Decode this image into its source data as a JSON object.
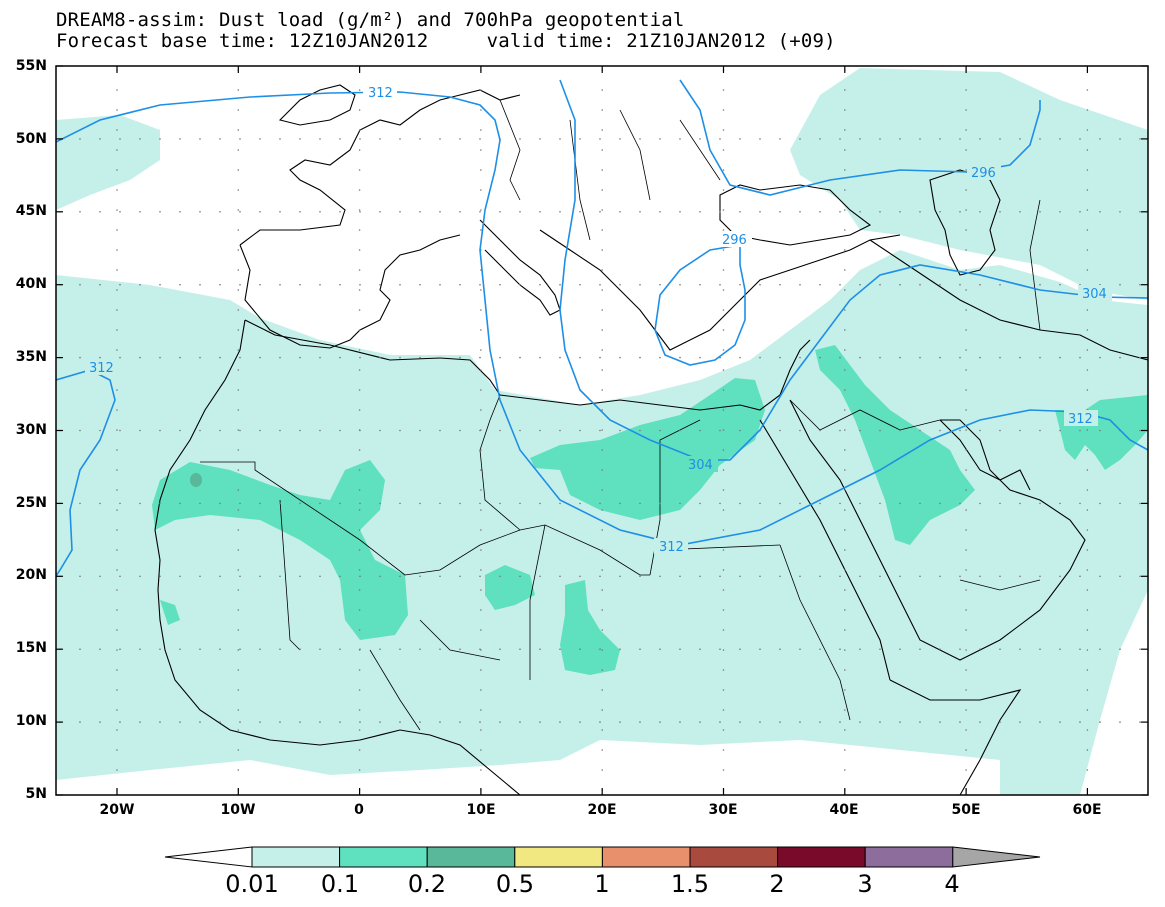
{
  "header": {
    "line1": "DREAM8-assim: Dust load (g/m²) and 700hPa geopotential",
    "line2": "Forecast base time: 12Z10JAN2012     valid time: 21Z10JAN2012 (+09)"
  },
  "axes": {
    "lat_labels": [
      "55N",
      "50N",
      "45N",
      "40N",
      "35N",
      "30N",
      "25N",
      "20N",
      "15N",
      "10N",
      "5N"
    ],
    "lon_labels": [
      "20W",
      "10W",
      "0",
      "10E",
      "20E",
      "30E",
      "40E",
      "50E",
      "60E"
    ]
  },
  "contour_labels": [
    {
      "id": "c312-north",
      "text": "312"
    },
    {
      "id": "c312-west",
      "text": "312"
    },
    {
      "id": "c312-south",
      "text": "312"
    },
    {
      "id": "c312-east",
      "text": "312"
    },
    {
      "id": "c304-south",
      "text": "304"
    },
    {
      "id": "c304-east",
      "text": "304"
    },
    {
      "id": "c296-east",
      "text": "296"
    },
    {
      "id": "c296-greece",
      "text": "296"
    }
  ],
  "colorbar": {
    "labels": [
      "0.01",
      "0.1",
      "0.2",
      "0.5",
      "1",
      "1.5",
      "2",
      "3",
      "4"
    ],
    "colors": [
      "#ffffff",
      "#c5f0ea",
      "#5fe0bf",
      "#58b899",
      "#f1e882",
      "#e8906b",
      "#a84a3e",
      "#7a0a2a",
      "#8c6d9c",
      "#a6a6a6"
    ]
  },
  "colors": {
    "dust_low": "#c5f0ea",
    "dust_mid": "#5fe0bf",
    "dust_high": "#58b899",
    "contour": "#1e8fe6",
    "coast": "#000000"
  }
}
